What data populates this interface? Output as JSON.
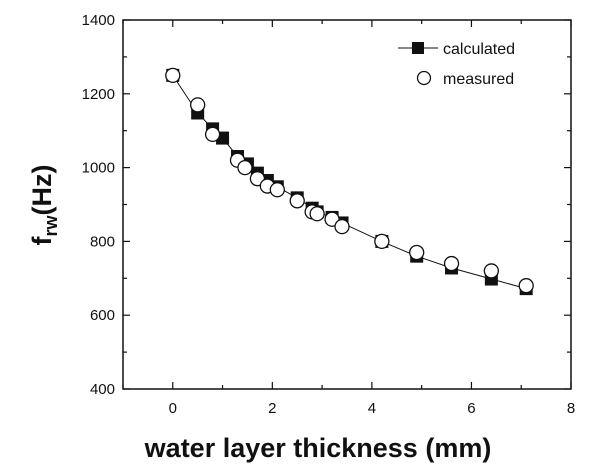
{
  "chart_data": {
    "type": "scatter",
    "title": "",
    "xlabel": "water layer thickness (mm)",
    "ylabel": {
      "main": "f",
      "sub": "rw",
      "unit": "(Hz)"
    },
    "xlim": [
      -1,
      8
    ],
    "ylim": [
      400,
      1400
    ],
    "xticks": [
      0,
      2,
      4,
      6,
      8
    ],
    "yticks": [
      400,
      600,
      800,
      1000,
      1200,
      1400
    ],
    "grid": false,
    "legend_position": "top-right",
    "series": [
      {
        "name": "calculated",
        "marker": "filled-square",
        "line": true,
        "color": "#111111",
        "x": [
          0,
          0.5,
          0.8,
          1.0,
          1.3,
          1.5,
          1.7,
          1.9,
          2.1,
          2.5,
          2.8,
          2.9,
          3.2,
          3.4,
          4.2,
          4.9,
          5.6,
          6.4,
          7.1
        ],
        "y": [
          1250,
          1148,
          1105,
          1080,
          1030,
          1010,
          985,
          965,
          948,
          918,
          890,
          880,
          865,
          850,
          800,
          760,
          728,
          698,
          672
        ]
      },
      {
        "name": "measured",
        "marker": "open-circle",
        "line": false,
        "color": "#111111",
        "x": [
          0,
          0.5,
          0.8,
          1.3,
          1.45,
          1.7,
          1.9,
          2.1,
          2.5,
          2.8,
          2.9,
          3.2,
          3.4,
          4.2,
          4.9,
          5.6,
          6.4,
          7.1
        ],
        "y": [
          1250,
          1170,
          1090,
          1020,
          1000,
          970,
          950,
          940,
          910,
          880,
          875,
          860,
          840,
          800,
          770,
          740,
          720,
          680
        ]
      }
    ]
  }
}
